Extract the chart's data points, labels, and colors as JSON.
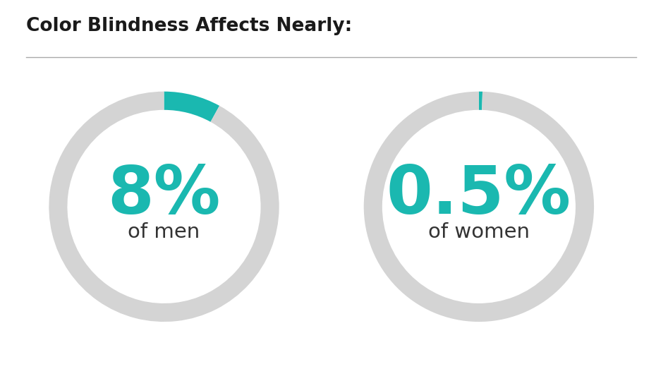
{
  "title": "Color Blindness Affects Nearly:",
  "title_fontsize": 19,
  "title_color": "#1a1a1a",
  "background_color": "#ffffff",
  "teal_color": "#1ab8b0",
  "gray_color": "#d4d4d4",
  "men_value": 8.0,
  "women_value": 0.5,
  "men_label_big": "8%",
  "men_label_small": "of men",
  "women_label_big": "0.5%",
  "women_label_small": "of women",
  "big_fontsize": 68,
  "small_fontsize": 21,
  "line_color": "#aaaaaa",
  "donut_outer_r": 0.46,
  "donut_inner_r": 0.3,
  "text_color_label": "#333333"
}
